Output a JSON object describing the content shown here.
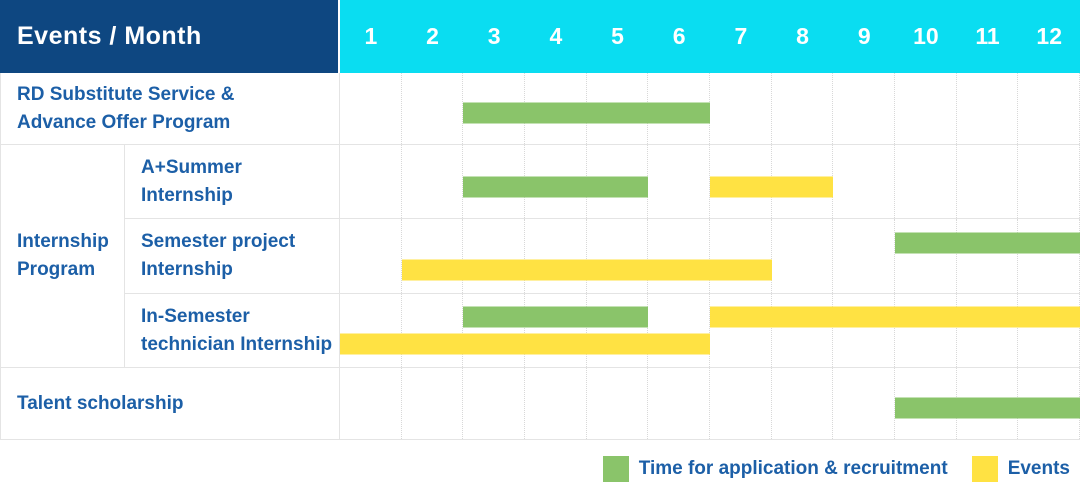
{
  "colors": {
    "header_navy": "#0E4781",
    "header_cyan": "#0ADDF1",
    "bar_green": "#8AC46A",
    "bar_yellow": "#FFE243",
    "text_blue": "#1C5FA7",
    "grid_line": "#E4E4E4",
    "grid_dotted": "#D8D8D8"
  },
  "header": {
    "label": "Events / Month",
    "months": [
      "1",
      "2",
      "3",
      "4",
      "5",
      "6",
      "7",
      "8",
      "9",
      "10",
      "11",
      "12"
    ]
  },
  "group": {
    "lines": [
      "Internship",
      "Program"
    ]
  },
  "rows": [
    {
      "name": "rd-substitute-service",
      "label_lines": [
        "RD Substitute Service &",
        "Advance Offer Program"
      ],
      "in_group": false,
      "bars": [
        {
          "color": "green",
          "start_month": 3,
          "end_month": 6,
          "line": "single"
        }
      ]
    },
    {
      "name": "a-plus-summer-internship",
      "label_lines": [
        "A+Summer",
        "Internship"
      ],
      "in_group": true,
      "bars": [
        {
          "color": "green",
          "start_month": 3,
          "end_month": 5,
          "line": "single"
        },
        {
          "color": "yellow",
          "start_month": 7,
          "end_month": 8,
          "line": "single"
        }
      ]
    },
    {
      "name": "semester-project-internship",
      "label_lines": [
        "Semester project",
        "Internship"
      ],
      "in_group": true,
      "bars": [
        {
          "color": "green",
          "start_month": 10,
          "end_month": 12,
          "line": "upper"
        },
        {
          "color": "yellow",
          "start_month": 2,
          "end_month": 7,
          "line": "lower"
        }
      ]
    },
    {
      "name": "in-semester-technician-internship",
      "label_lines": [
        "In-Semester",
        "technician Internship"
      ],
      "in_group": true,
      "bars": [
        {
          "color": "green",
          "start_month": 3,
          "end_month": 5,
          "line": "upper"
        },
        {
          "color": "yellow",
          "start_month": 7,
          "end_month": 12,
          "line": "upper"
        },
        {
          "color": "yellow",
          "start_month": 1,
          "end_month": 6,
          "line": "lower"
        }
      ]
    },
    {
      "name": "talent-scholarship",
      "label_lines": [
        "Talent scholarship"
      ],
      "in_group": false,
      "bars": [
        {
          "color": "green",
          "start_month": 10,
          "end_month": 12,
          "line": "single"
        }
      ]
    }
  ],
  "legend": {
    "items": [
      {
        "key": "green",
        "label": "Time for application & recruitment"
      },
      {
        "key": "yellow",
        "label": "Events"
      }
    ]
  },
  "chart_data": {
    "type": "bar",
    "variant": "gantt-range",
    "title": "Events / Month",
    "x_axis": {
      "label": "Month",
      "ticks": [
        1,
        2,
        3,
        4,
        5,
        6,
        7,
        8,
        9,
        10,
        11,
        12
      ],
      "range": [
        1,
        12
      ]
    },
    "grid": true,
    "legend_position": "bottom-right",
    "legend": [
      "Time for application & recruitment",
      "Events"
    ],
    "series": [
      {
        "row": "RD Substitute Service & Advance Offer Program",
        "group": null,
        "segments": [
          {
            "type": "Time for application & recruitment",
            "months": [
              3,
              6
            ]
          }
        ]
      },
      {
        "row": "A+Summer Internship",
        "group": "Internship Program",
        "segments": [
          {
            "type": "Time for application & recruitment",
            "months": [
              3,
              5
            ]
          },
          {
            "type": "Events",
            "months": [
              7,
              8
            ]
          }
        ]
      },
      {
        "row": "Semester project Internship",
        "group": "Internship Program",
        "segments": [
          {
            "type": "Time for application & recruitment",
            "months": [
              10,
              12
            ]
          },
          {
            "type": "Events",
            "months": [
              2,
              7
            ]
          }
        ]
      },
      {
        "row": "In-Semester technician Internship",
        "group": "Internship Program",
        "segments": [
          {
            "type": "Time for application & recruitment",
            "months": [
              3,
              5
            ]
          },
          {
            "type": "Events",
            "months": [
              7,
              12
            ]
          },
          {
            "type": "Events",
            "months": [
              1,
              6
            ]
          }
        ]
      },
      {
        "row": "Talent scholarship",
        "group": null,
        "segments": [
          {
            "type": "Time for application & recruitment",
            "months": [
              10,
              12
            ]
          }
        ]
      }
    ]
  }
}
